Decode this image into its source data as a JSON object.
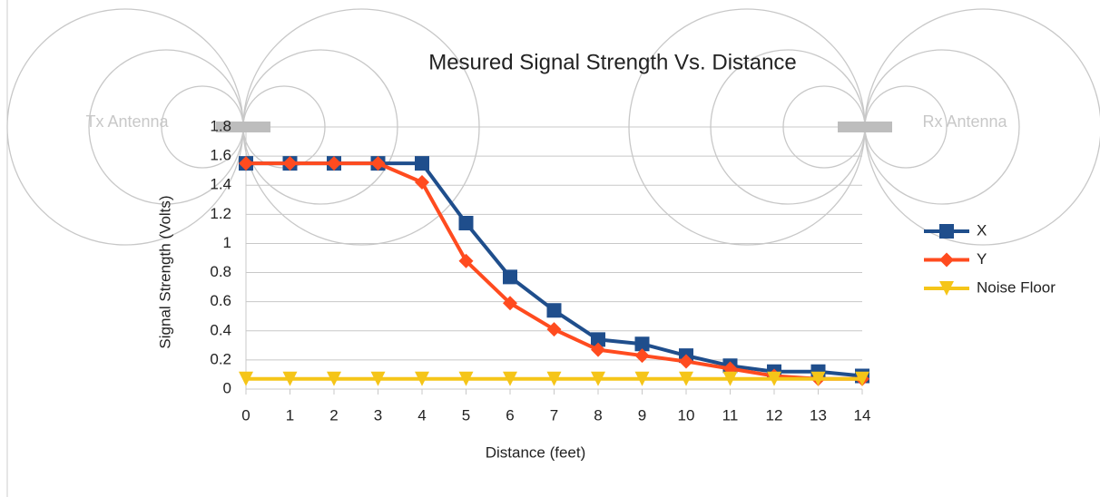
{
  "chart_data": {
    "type": "line",
    "title": "Mesured Signal Strength Vs. Distance",
    "x_label": "Distance (feet)",
    "y_label": "Signal Strength (Volts)",
    "annotations": [
      "Tx Antenna",
      "Rx Antenna"
    ],
    "x": [
      0,
      1,
      2,
      3,
      4,
      5,
      6,
      7,
      8,
      9,
      10,
      11,
      12,
      13,
      14
    ],
    "xlim": [
      0,
      14
    ],
    "xticks": [
      0,
      1,
      2,
      3,
      4,
      5,
      6,
      7,
      8,
      9,
      10,
      11,
      12,
      13,
      14
    ],
    "ylim": [
      0,
      1.8
    ],
    "yticks": [
      0,
      0.2,
      0.4,
      0.6,
      0.8,
      1,
      1.2,
      1.4,
      1.6,
      1.8
    ],
    "grid": true,
    "legend": "right",
    "series": [
      {
        "name": "X",
        "color": "#1f4e8c",
        "marker": "square",
        "values": [
          1.55,
          1.55,
          1.55,
          1.55,
          1.55,
          1.14,
          0.77,
          0.54,
          0.34,
          0.31,
          0.23,
          0.16,
          0.12,
          0.12,
          0.09
        ]
      },
      {
        "name": "Y",
        "color": "#ff4b1f",
        "marker": "diamond",
        "values": [
          1.55,
          1.55,
          1.55,
          1.55,
          1.42,
          0.88,
          0.59,
          0.41,
          0.27,
          0.23,
          0.19,
          0.14,
          0.09,
          0.07,
          0.07
        ]
      },
      {
        "name": "Noise Floor",
        "color": "#f5c518",
        "marker": "triangle-down",
        "values": [
          0.07,
          0.07,
          0.07,
          0.07,
          0.07,
          0.07,
          0.07,
          0.07,
          0.07,
          0.07,
          0.07,
          0.07,
          0.07,
          0.07,
          0.07
        ]
      }
    ]
  }
}
